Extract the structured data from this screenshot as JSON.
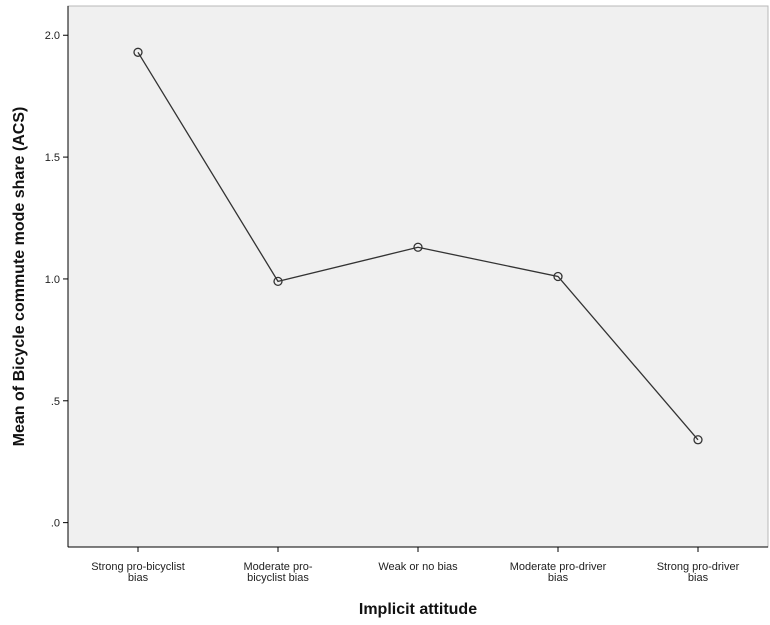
{
  "chart_data": {
    "type": "line",
    "xlabel": "Implicit attitude",
    "ylabel": "Mean of Bicycle commute mode share (ACS)",
    "categories": [
      [
        "Strong pro-bicyclist",
        "bias"
      ],
      [
        "Moderate pro-",
        "bicyclist bias"
      ],
      [
        "Weak or no bias"
      ],
      [
        "Moderate pro-driver",
        "bias"
      ],
      [
        "Strong pro-driver",
        "bias"
      ]
    ],
    "values": [
      1.93,
      0.99,
      1.13,
      1.01,
      0.34
    ],
    "ylim": [
      -0.1,
      2.12
    ],
    "yticks": [
      {
        "value": 0.0,
        "label": ".0"
      },
      {
        "value": 0.5,
        "label": ".5"
      },
      {
        "value": 1.0,
        "label": "1.0"
      },
      {
        "value": 1.5,
        "label": "1.5"
      },
      {
        "value": 2.0,
        "label": "2.0"
      }
    ],
    "grid": false,
    "colors": {
      "plot_background": "#f0f0f0",
      "line": "#333333",
      "marker": "#333333",
      "axis": "#000000"
    }
  }
}
